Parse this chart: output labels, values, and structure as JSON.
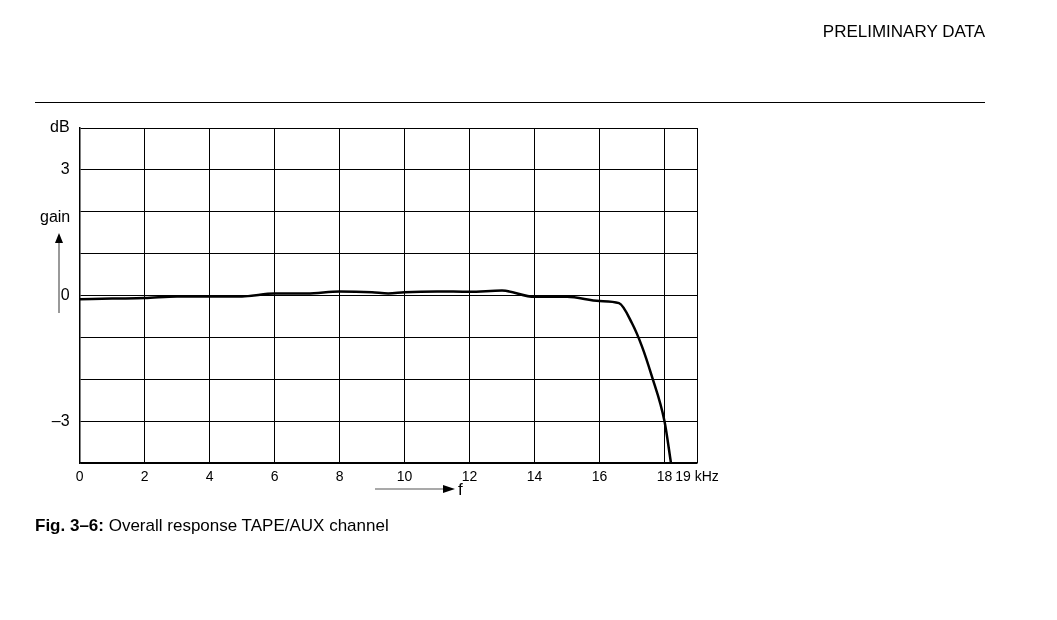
{
  "chart_data": {
    "type": "line",
    "xlabel": "f",
    "ylabel": "gain",
    "annotations": [
      "PRELIMINARY DATA",
      "Fig. 3–6: Overall response TAPE/AUX channel"
    ],
    "x": [
      0,
      1,
      2,
      3,
      4,
      5,
      6,
      7,
      8,
      9,
      9.5,
      10,
      11,
      12,
      13,
      14,
      15,
      16,
      16.6,
      17,
      17.3,
      17.6,
      18,
      18.2
    ],
    "series": [
      {
        "color": "#000000",
        "values": [
          -0.09,
          -0.07,
          -0.06,
          -0.02,
          -0.02,
          -0.02,
          0.05,
          0.05,
          0.1,
          0.08,
          0.05,
          0.08,
          0.1,
          0.09,
          0.12,
          -0.03,
          -0.03,
          -0.13,
          -0.18,
          -0.66,
          -1.2,
          -1.9,
          -3,
          -4
        ]
      }
    ],
    "xlim": [
      0,
      19
    ],
    "xticks": [
      0,
      2,
      4,
      6,
      8,
      10,
      12,
      14,
      16,
      18,
      {
        "value": 19,
        "label": "19 kHz"
      }
    ],
    "ylim": [
      -4,
      4
    ],
    "yticks": [
      {
        "value": -4,
        "label": null
      },
      {
        "value": -3,
        "label": "–3"
      },
      {
        "value": -2,
        "label": null
      },
      {
        "value": -1,
        "label": null
      },
      0,
      {
        "value": 1,
        "label": null
      },
      {
        "value": 2,
        "label": null
      },
      3,
      {
        "value": 4,
        "label": "dB"
      }
    ],
    "grid": true,
    "legend": false,
    "marker": "none",
    "line_style": "solid"
  }
}
